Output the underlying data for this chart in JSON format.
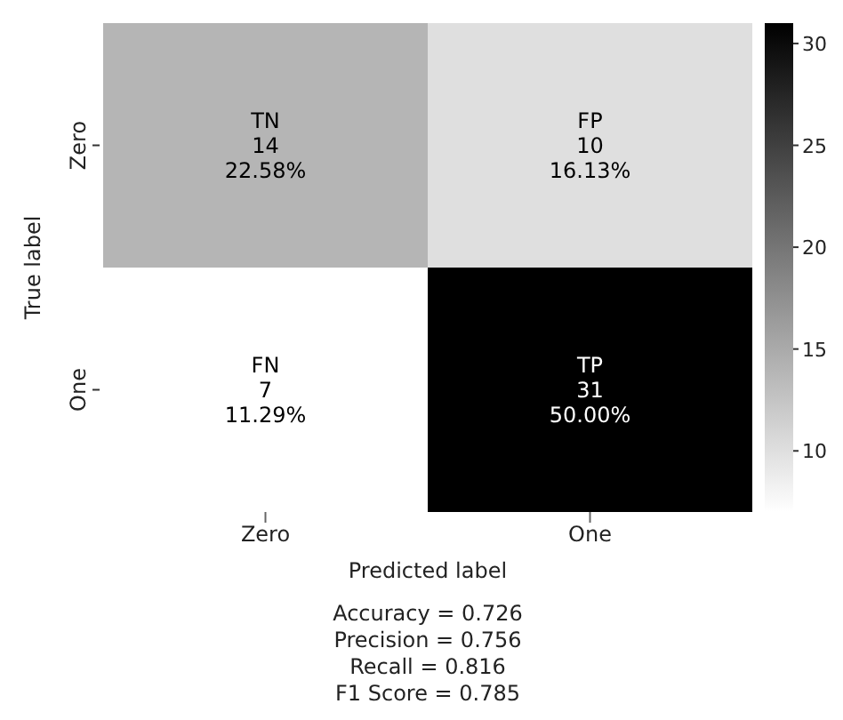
{
  "chart_data": {
    "type": "heatmap",
    "xlabel": "Predicted label",
    "ylabel": "True label",
    "categories": [
      "Zero",
      "One"
    ],
    "y_categories": [
      "Zero",
      "One"
    ],
    "cells": [
      [
        14,
        10
      ],
      [
        7,
        31
      ]
    ],
    "cell_labels": [
      [
        "TN\n14\n22.58%",
        "FP\n10\n16.13%"
      ],
      [
        "FN\n7\n11.29%",
        "TP\n31\n50.00%"
      ]
    ],
    "clim": [
      7,
      31
    ],
    "cticks": [
      10,
      15,
      20,
      25,
      30
    ],
    "annotations": [
      "Accuracy = 0.726",
      "Precision = 0.756",
      "Recall = 0.816",
      "F1 Score = 0.785"
    ]
  }
}
